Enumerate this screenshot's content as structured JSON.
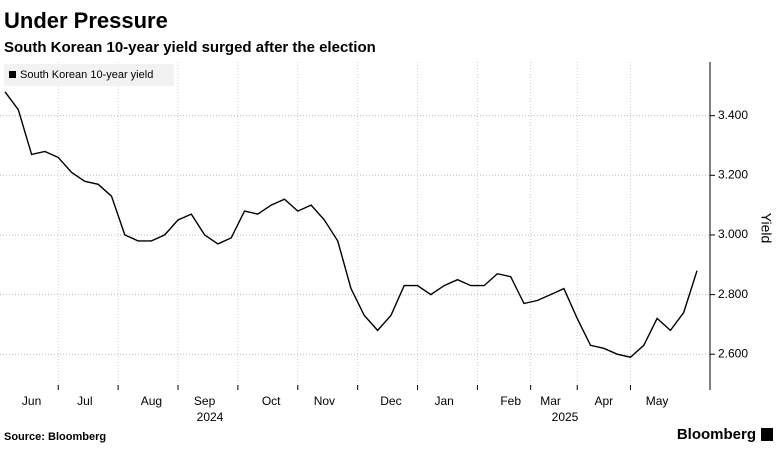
{
  "chart_data": {
    "type": "line",
    "title": "Under Pressure",
    "subtitle": "South Korean 10-year yield surged after the election",
    "y_label": "Yield",
    "source": "Source: Bloomberg",
    "brand": "Bloomberg",
    "year_labels": [
      "2024",
      "2025"
    ],
    "categories": [
      null,
      null,
      "Jun",
      null,
      null,
      null,
      "Jul",
      null,
      null,
      null,
      null,
      "Aug",
      null,
      null,
      null,
      "Sep",
      null,
      null,
      null,
      null,
      "Oct",
      null,
      null,
      null,
      "Nov",
      null,
      null,
      null,
      null,
      "Dec",
      null,
      null,
      null,
      "Jan",
      null,
      null,
      null,
      null,
      "Feb",
      null,
      null,
      "Mar",
      null,
      null,
      null,
      "Apr",
      null,
      null,
      null,
      "May",
      null,
      null,
      null
    ],
    "series": [
      {
        "name": "South Korean 10-year yield",
        "color": "#000000",
        "values": [
          3.48,
          3.42,
          3.27,
          3.28,
          3.26,
          3.21,
          3.18,
          3.17,
          3.13,
          3.0,
          2.98,
          2.98,
          3.0,
          3.05,
          3.07,
          3.0,
          2.97,
          2.99,
          3.08,
          3.07,
          3.1,
          3.12,
          3.08,
          3.1,
          3.05,
          2.98,
          2.82,
          2.73,
          2.68,
          2.73,
          2.83,
          2.83,
          2.8,
          2.83,
          2.85,
          2.83,
          2.83,
          2.87,
          2.86,
          2.77,
          2.78,
          2.8,
          2.82,
          2.72,
          2.63,
          2.62,
          2.6,
          2.59,
          2.63,
          2.72,
          2.68,
          2.74,
          2.88
        ]
      }
    ],
    "ylim": [
      2.48,
      3.58
    ],
    "yticks": [
      {
        "value": 2.6,
        "label": "2.600"
      },
      {
        "value": 2.8,
        "label": "2.800"
      },
      {
        "value": 3.0,
        "label": "3.000"
      },
      {
        "value": 3.2,
        "label": "3.200"
      },
      {
        "value": 3.4,
        "label": "3.400"
      }
    ],
    "grid": true,
    "legend": "top-left"
  }
}
